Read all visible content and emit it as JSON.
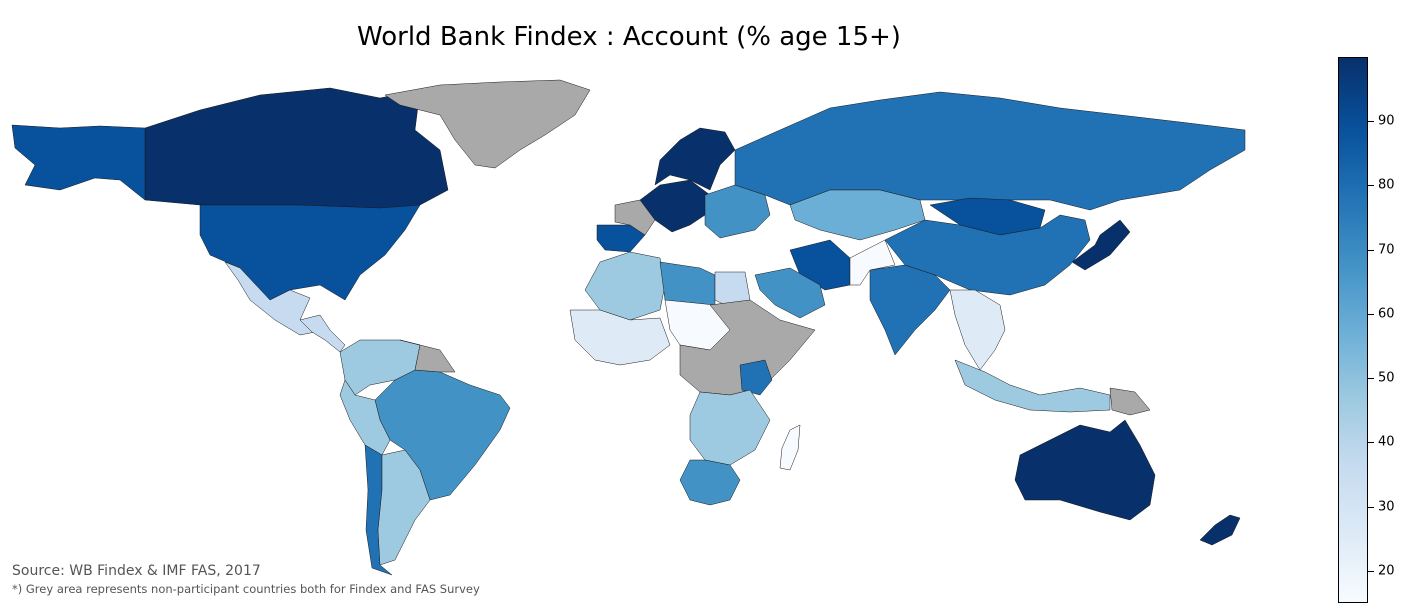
{
  "title": "World Bank Findex : Account (% age 15+)",
  "source": "Source: WB Findex & IMF FAS, 2017",
  "note": "*) Grey area represents non-participant countries both for Findex and FAS Survey",
  "colorbar": {
    "ticks": [
      "90",
      "80",
      "70",
      "60",
      "50",
      "40",
      "30",
      "20"
    ],
    "range": [
      15,
      100
    ],
    "colormap": "Blues"
  },
  "colors": {
    "no_data": "#a9a9a9",
    "scale": [
      "#f7fbff",
      "#deebf7",
      "#c6dbef",
      "#9ecae1",
      "#6baed6",
      "#4292c6",
      "#2171b5",
      "#08519c",
      "#08306b"
    ]
  },
  "chart_data": {
    "type": "choropleth",
    "metric": "Account (% age 15+)",
    "regions": [
      {
        "name": "Canada",
        "value": 100
      },
      {
        "name": "Alaska (United States)",
        "value": 93
      },
      {
        "name": "United States",
        "value": 93
      },
      {
        "name": "Greenland",
        "value": null
      },
      {
        "name": "Mexico",
        "value": 37
      },
      {
        "name": "Central America",
        "value": 40
      },
      {
        "name": "Brazil",
        "value": 70
      },
      {
        "name": "Colombia / Venezuela",
        "value": 46
      },
      {
        "name": "Peru",
        "value": 43
      },
      {
        "name": "Chile",
        "value": 74
      },
      {
        "name": "Argentina",
        "value": 49
      },
      {
        "name": "Guianas",
        "value": null
      },
      {
        "name": "Western Europe",
        "value": 98
      },
      {
        "name": "Spain / Portugal",
        "value": 93
      },
      {
        "name": "France",
        "value": null
      },
      {
        "name": "Scandinavia",
        "value": 99
      },
      {
        "name": "Eastern Europe",
        "value": 70
      },
      {
        "name": "Russia",
        "value": 76
      },
      {
        "name": "Kazakhstan",
        "value": 59
      },
      {
        "name": "Mongolia",
        "value": 93
      },
      {
        "name": "China",
        "value": 80
      },
      {
        "name": "Japan",
        "value": 98
      },
      {
        "name": "India",
        "value": 80
      },
      {
        "name": "Iran",
        "value": 94
      },
      {
        "name": "Saudi Arabia",
        "value": 72
      },
      {
        "name": "Afghanistan / Pakistan",
        "value": 18
      },
      {
        "name": "Southeast Asia",
        "value": 30
      },
      {
        "name": "Indonesia",
        "value": 49
      },
      {
        "name": "Australia",
        "value": 100
      },
      {
        "name": "New Zealand",
        "value": 99
      },
      {
        "name": "North Africa",
        "value": 43
      },
      {
        "name": "Libya",
        "value": 66
      },
      {
        "name": "Egypt",
        "value": 33
      },
      {
        "name": "West Africa",
        "value": 24
      },
      {
        "name": "Sahel",
        "value": 18
      },
      {
        "name": "Central / Horn of Africa",
        "value": null
      },
      {
        "name": "Kenya",
        "value": 82
      },
      {
        "name": "Tanzania / Zambia",
        "value": 45
      },
      {
        "name": "South Africa",
        "value": 69
      },
      {
        "name": "Madagascar",
        "value": 18
      },
      {
        "name": "Papua New Guinea",
        "value": null
      }
    ]
  }
}
